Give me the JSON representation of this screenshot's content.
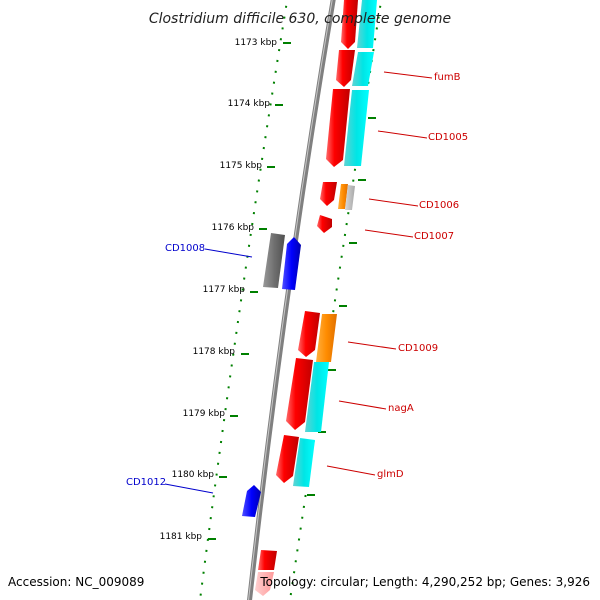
{
  "title": "Clostridium difficile 630, complete genome",
  "footer": {
    "accession": "Accession: NC_009089",
    "topology": "Topology: circular; Length: 4,290,252 bp; Genes: 3,926"
  },
  "kbp_labels": [
    "1173 kbp",
    "1174 kbp",
    "1175 kbp",
    "1176 kbp",
    "1177 kbp",
    "1178 kbp",
    "1179 kbp",
    "1180 kbp",
    "1181 kbp"
  ],
  "gene_labels": {
    "fumB": "fumB",
    "CD1005": "CD1005",
    "CD1006": "CD1006",
    "CD1007": "CD1007",
    "CD1008": "CD1008",
    "CD1009": "CD1009",
    "nagA": "nagA",
    "glmD": "glmD",
    "CD1012": "CD1012"
  },
  "colors": {
    "backbone": "#808080",
    "tick_green": "#008000",
    "gene_red": "#ff0000",
    "gene_cyan": "#00ffff",
    "gene_orange": "#ff8c00",
    "gene_blue": "#0000ff",
    "gene_gray": "#707070",
    "label_red": "#cc0000",
    "label_blue": "#0000cc"
  }
}
